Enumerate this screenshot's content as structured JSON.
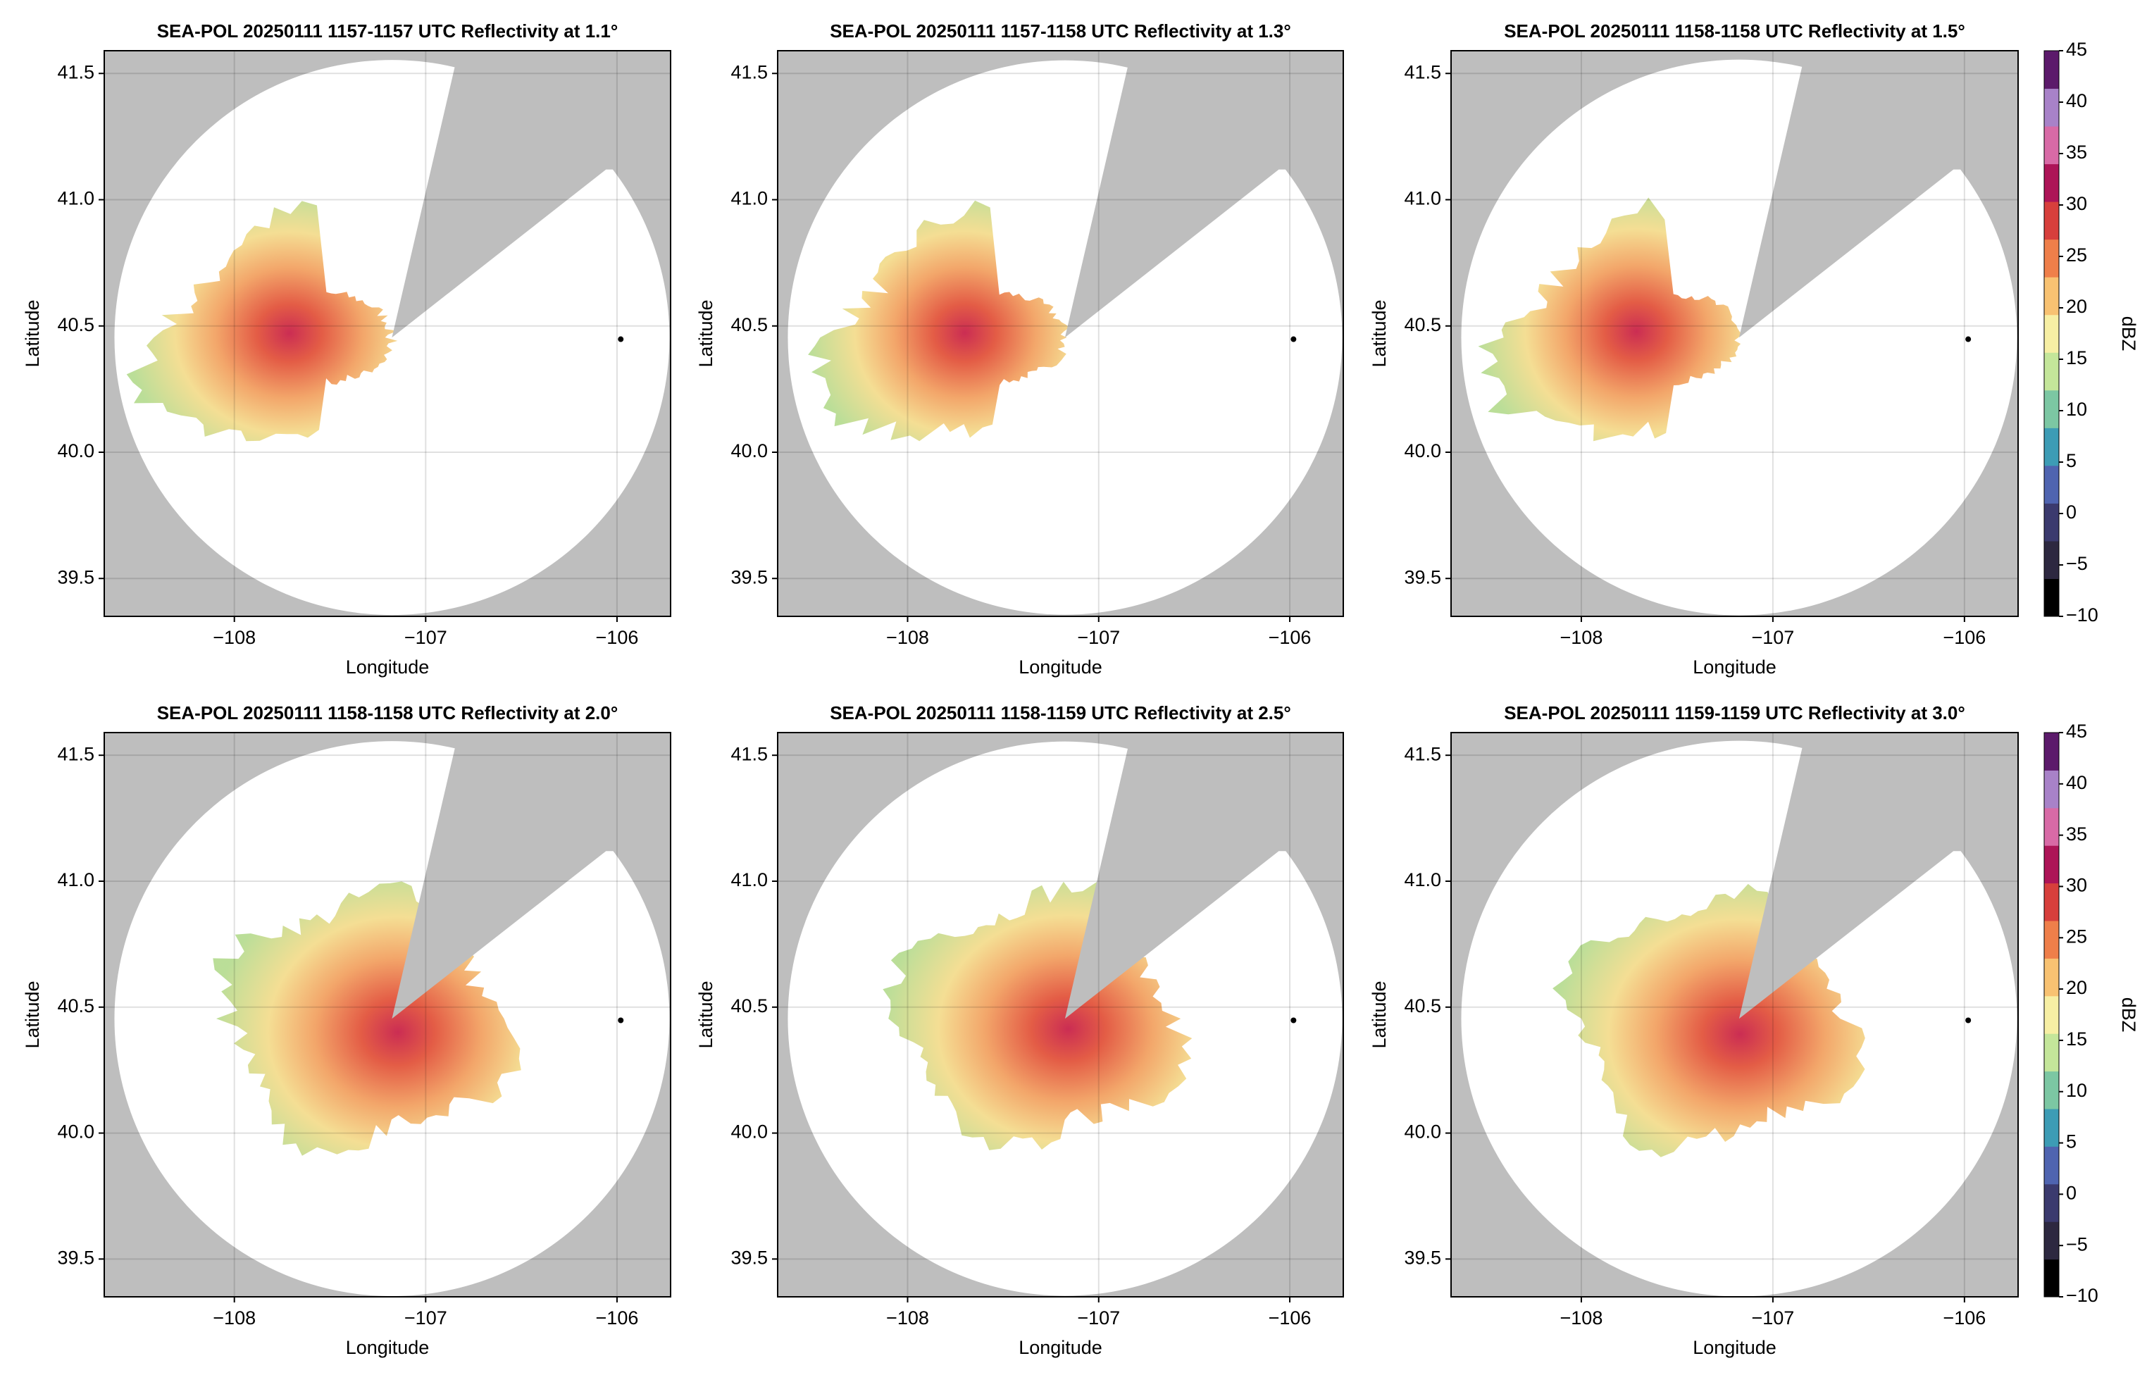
{
  "chart_data": [
    {
      "type": "radar-ppi",
      "title": "SEA-POL 20250111 1157-1157 UTC Reflectivity at 1.1°",
      "xlabel": "Longitude",
      "ylabel": "Latitude",
      "xlim": [
        -108.68,
        -105.72
      ],
      "ylim": [
        39.35,
        41.59
      ],
      "xticks": [
        {
          "value": -108,
          "label": "−108"
        },
        {
          "value": -107,
          "label": "−107"
        },
        {
          "value": -106,
          "label": "−106"
        }
      ],
      "yticks": [
        39.5,
        {
          "value": 40.0,
          "label": "40.0"
        },
        40.5,
        {
          "value": 41.0,
          "label": "41.0"
        },
        41.5
      ],
      "grid": true
    },
    {
      "type": "radar-ppi",
      "title": "SEA-POL 20250111 1157-1158 UTC Reflectivity at 1.3°",
      "xlabel": "Longitude",
      "ylabel": "Latitude",
      "xlim": [
        -108.68,
        -105.72
      ],
      "ylim": [
        39.35,
        41.59
      ],
      "xticks": [
        {
          "value": -108,
          "label": "−108"
        },
        {
          "value": -107,
          "label": "−107"
        },
        {
          "value": -106,
          "label": "−106"
        }
      ],
      "yticks": [
        39.5,
        {
          "value": 40.0,
          "label": "40.0"
        },
        40.5,
        {
          "value": 41.0,
          "label": "41.0"
        },
        41.5
      ],
      "grid": true
    },
    {
      "type": "radar-ppi",
      "title": "SEA-POL 20250111 1158-1158 UTC Reflectivity at 1.5°",
      "xlabel": "Longitude",
      "ylabel": "Latitude",
      "xlim": [
        -108.68,
        -105.72
      ],
      "ylim": [
        39.35,
        41.59
      ],
      "xticks": [
        {
          "value": -108,
          "label": "−108"
        },
        {
          "value": -107,
          "label": "−107"
        },
        {
          "value": -106,
          "label": "−106"
        }
      ],
      "yticks": [
        39.5,
        {
          "value": 40.0,
          "label": "40.0"
        },
        40.5,
        {
          "value": 41.0,
          "label": "41.0"
        },
        41.5
      ],
      "grid": true,
      "colorbar": {
        "label": "dBZ",
        "lim": [
          -10,
          45
        ],
        "ticks": [
          {
            "value": -10,
            "label": "−10"
          },
          {
            "value": -5,
            "label": "−5"
          },
          0,
          5,
          10,
          15,
          20,
          25,
          30,
          35,
          40,
          45
        ],
        "colors": [
          "#000000",
          "#2d2840",
          "#3b3a6e",
          "#4f64b0",
          "#3d9cb5",
          "#7cc7a3",
          "#c4e69a",
          "#f7efa4",
          "#f8c272",
          "#ef7f4a",
          "#d73f3c",
          "#ad1457",
          "#d86aa6",
          "#a882c8",
          "#5c1a6b"
        ]
      }
    },
    {
      "type": "radar-ppi",
      "title": "SEA-POL 20250111 1158-1158 UTC Reflectivity at 2.0°",
      "xlabel": "Longitude",
      "ylabel": "Latitude",
      "xlim": [
        -108.68,
        -105.72
      ],
      "ylim": [
        39.35,
        41.59
      ],
      "xticks": [
        {
          "value": -108,
          "label": "−108"
        },
        {
          "value": -107,
          "label": "−107"
        },
        {
          "value": -106,
          "label": "−106"
        }
      ],
      "yticks": [
        39.5,
        {
          "value": 40.0,
          "label": "40.0"
        },
        40.5,
        {
          "value": 41.0,
          "label": "41.0"
        },
        41.5
      ],
      "grid": true
    },
    {
      "type": "radar-ppi",
      "title": "SEA-POL 20250111 1158-1159 UTC Reflectivity at 2.5°",
      "xlabel": "Longitude",
      "ylabel": "Latitude",
      "xlim": [
        -108.68,
        -105.72
      ],
      "ylim": [
        39.35,
        41.59
      ],
      "xticks": [
        {
          "value": -108,
          "label": "−108"
        },
        {
          "value": -107,
          "label": "−107"
        },
        {
          "value": -106,
          "label": "−106"
        }
      ],
      "yticks": [
        39.5,
        {
          "value": 40.0,
          "label": "40.0"
        },
        40.5,
        {
          "value": 41.0,
          "label": "41.0"
        },
        41.5
      ],
      "grid": true
    },
    {
      "type": "radar-ppi",
      "title": "SEA-POL 20250111 1159-1159 UTC Reflectivity at 3.0°",
      "xlabel": "Longitude",
      "ylabel": "Latitude",
      "xlim": [
        -108.68,
        -105.72
      ],
      "ylim": [
        39.35,
        41.59
      ],
      "xticks": [
        {
          "value": -108,
          "label": "−108"
        },
        {
          "value": -107,
          "label": "−107"
        },
        {
          "value": -106,
          "label": "−106"
        }
      ],
      "yticks": [
        39.5,
        {
          "value": 40.0,
          "label": "40.0"
        },
        40.5,
        {
          "value": 41.0,
          "label": "41.0"
        },
        41.5
      ],
      "grid": true,
      "colorbar": {
        "label": "dBZ",
        "lim": [
          -10,
          45
        ],
        "ticks": [
          {
            "value": -10,
            "label": "−10"
          },
          {
            "value": -5,
            "label": "−5"
          },
          0,
          5,
          10,
          15,
          20,
          25,
          30,
          35,
          40,
          45
        ],
        "colors": [
          "#000000",
          "#2d2840",
          "#3b3a6e",
          "#4f64b0",
          "#3d9cb5",
          "#7cc7a3",
          "#c4e69a",
          "#f7efa4",
          "#f8c272",
          "#ef7f4a",
          "#d73f3c",
          "#ad1457",
          "#d86aa6",
          "#a882c8",
          "#5c1a6b"
        ]
      }
    }
  ]
}
